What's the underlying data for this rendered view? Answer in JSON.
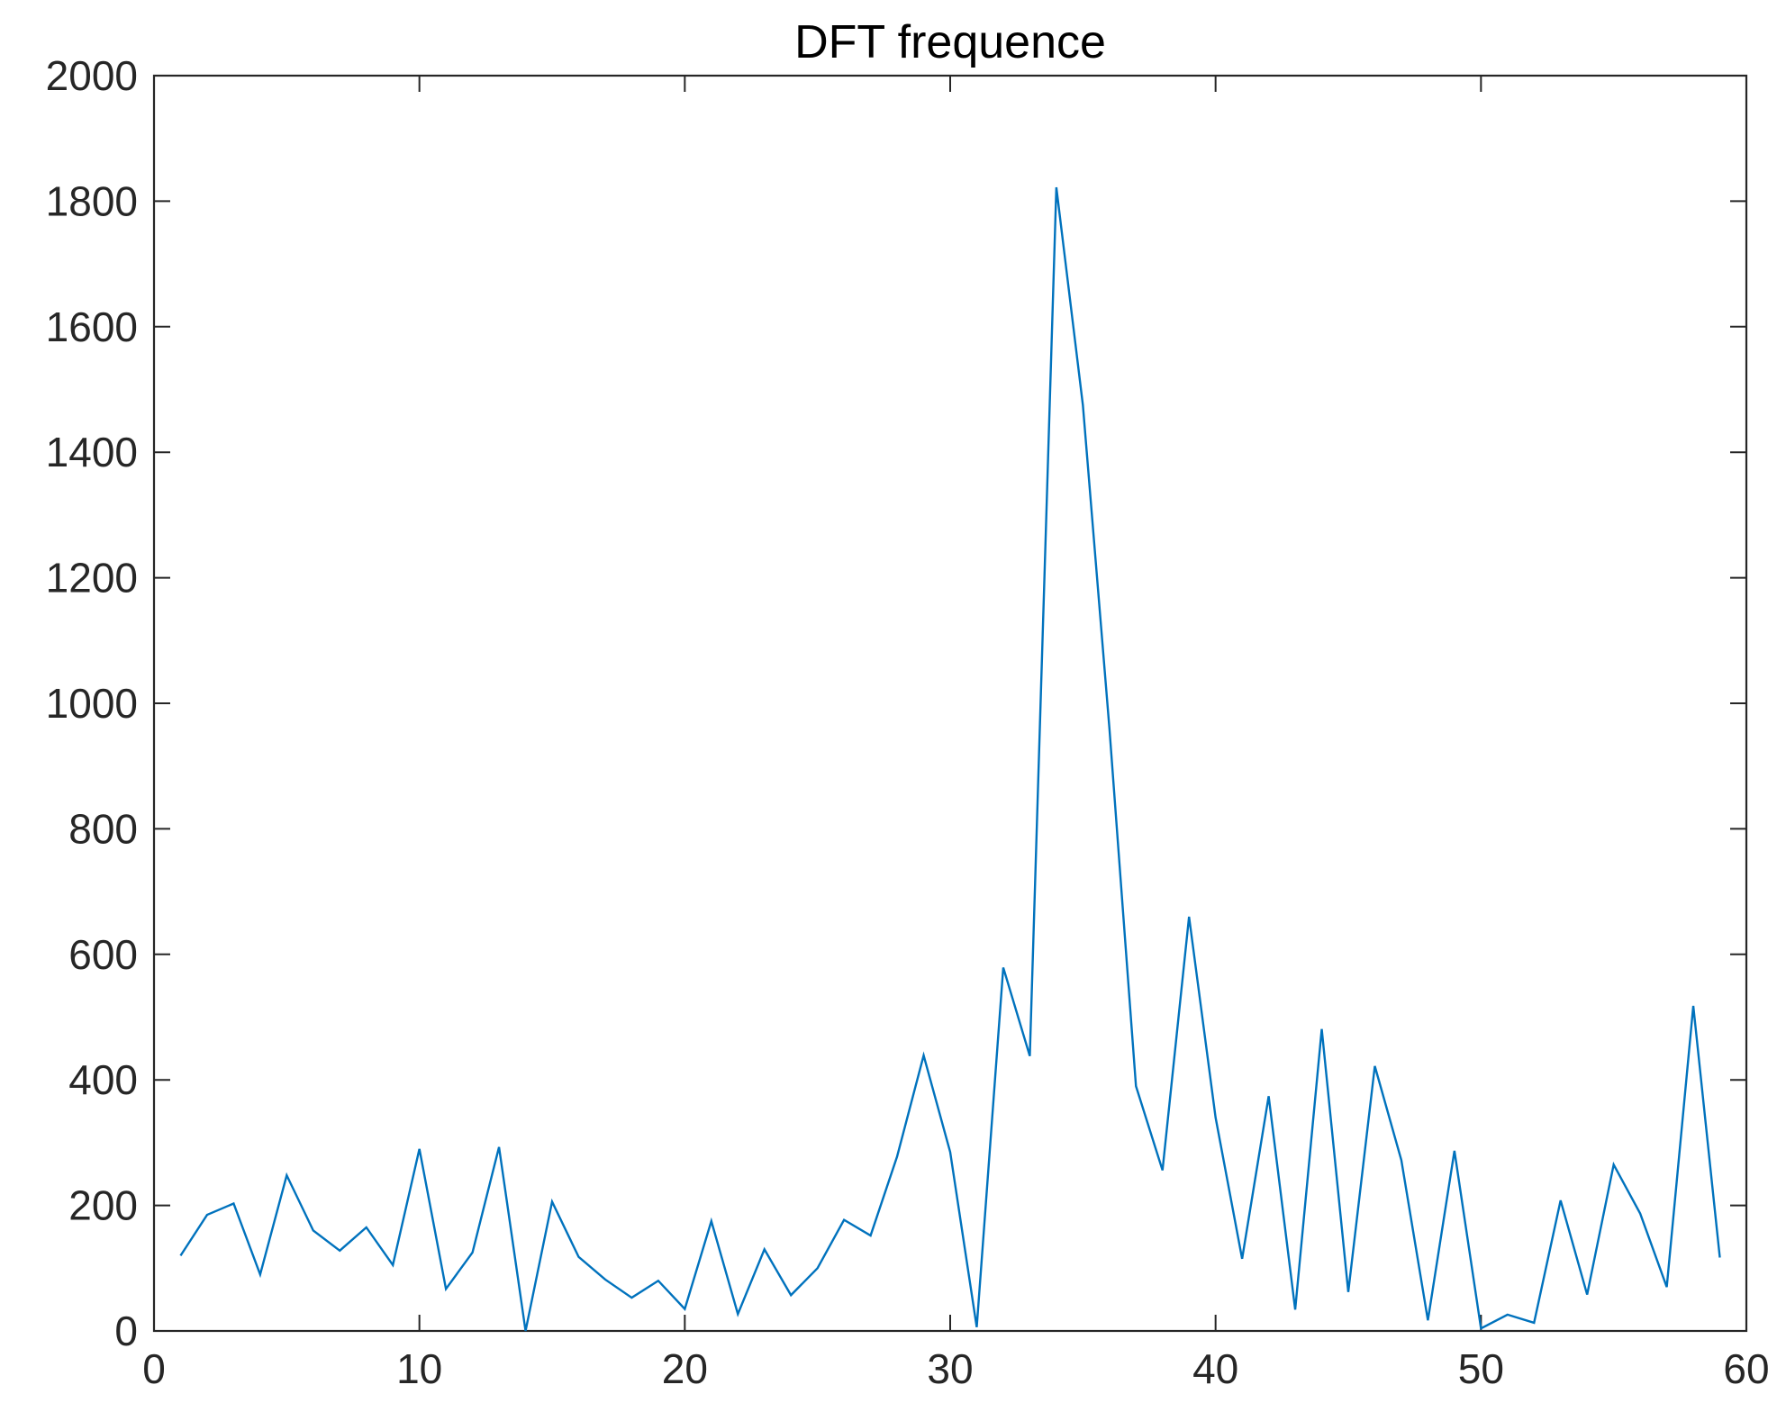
{
  "chart_data": {
    "type": "line",
    "title": "DFT frequence",
    "xlabel": "",
    "ylabel": "",
    "xlim": [
      0,
      60
    ],
    "ylim": [
      0,
      2000
    ],
    "xticks": [
      0,
      10,
      20,
      30,
      40,
      50,
      60
    ],
    "yticks": [
      0,
      200,
      400,
      600,
      800,
      1000,
      1200,
      1400,
      1600,
      1800,
      2000
    ],
    "xtick_labels": [
      "0",
      "10",
      "20",
      "30",
      "40",
      "50",
      "60"
    ],
    "ytick_labels": [
      "0",
      "200",
      "400",
      "600",
      "800",
      "1000",
      "1200",
      "1400",
      "1600",
      "1800",
      "2000"
    ],
    "grid": false,
    "line_color": "#0072BD",
    "axis_color": "#262626",
    "series": [
      {
        "x": [
          1,
          2,
          3,
          4,
          5,
          6,
          7,
          8,
          9,
          10,
          11,
          12,
          13,
          14,
          15,
          16,
          17,
          18,
          19,
          20,
          21,
          22,
          23,
          24,
          25,
          26,
          27,
          28,
          29,
          30,
          31,
          32,
          33,
          34,
          35,
          36,
          37,
          38,
          39,
          40,
          41,
          42,
          43,
          44,
          45,
          46,
          47,
          48,
          49,
          50,
          51,
          52,
          53,
          54,
          55,
          56,
          57,
          58,
          59
        ],
        "values": [
          120,
          185,
          203,
          90,
          248,
          160,
          128,
          165,
          105,
          290,
          67,
          125,
          293,
          0,
          206,
          118,
          82,
          53,
          80,
          35,
          175,
          27,
          130,
          57,
          100,
          177,
          152,
          278,
          439,
          285,
          6,
          579,
          438,
          1822,
          1475,
          960,
          390,
          256,
          660,
          340,
          115,
          374,
          34,
          481,
          62,
          422,
          272,
          17,
          287,
          4,
          26,
          13,
          208,
          58,
          265,
          187,
          70,
          518,
          117
        ]
      }
    ]
  }
}
